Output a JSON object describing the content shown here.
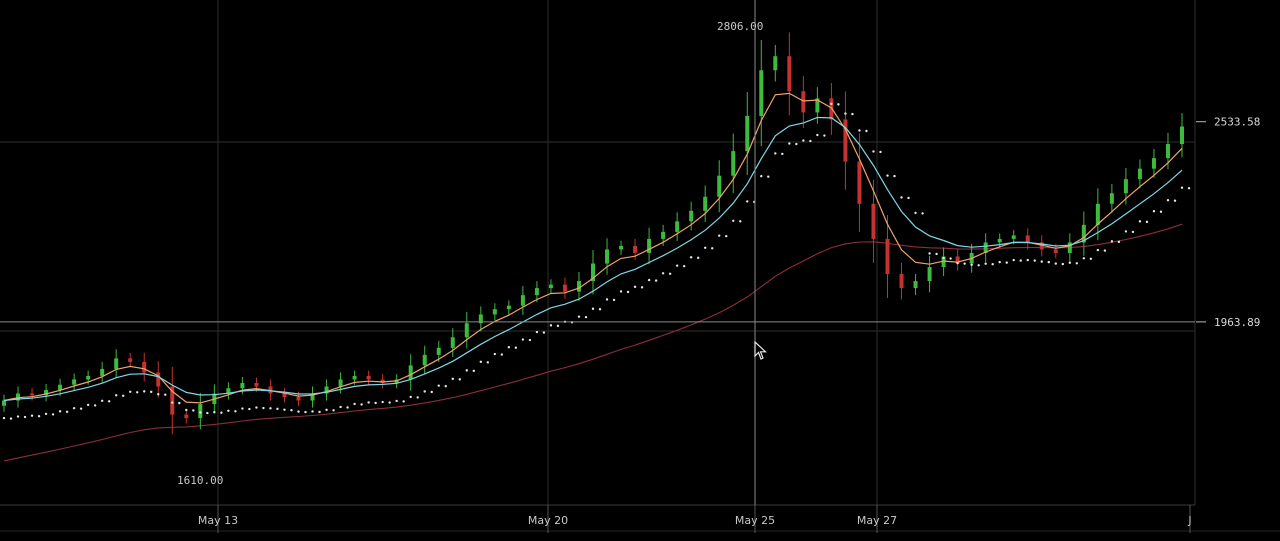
{
  "colors": {
    "background": "#000000",
    "grid": "#2e2e2e",
    "up": "#3dbb3d",
    "down": "#c43232",
    "ema_fast": "#f0a36c",
    "ema_mid": "#7fd8e6",
    "ma_slow": "#8c2e3c",
    "psar": "#e8e8e8",
    "crosshair": "#8a8a8a"
  },
  "chart_data": {
    "type": "candlestick",
    "title": "",
    "xlabel": "",
    "ylabel": "",
    "ylim": [
      1400,
      2830
    ],
    "grid": true,
    "x_tick_labels": [
      "May 13",
      "May 20",
      "May 25",
      "May 27",
      "J"
    ],
    "price_labels": [
      {
        "value": 2533.58,
        "text": "2533.58"
      },
      {
        "value": 1963.89,
        "text": "1963.89"
      }
    ],
    "annotations": [
      {
        "text": "2806.00",
        "value": 2806.0,
        "type": "high"
      },
      {
        "text": "1610.00",
        "value": 1610.0,
        "type": "low"
      }
    ],
    "crosshair": {
      "price": 1963.89,
      "date": "May 25"
    },
    "series": [
      {
        "kind": "price",
        "close": [
          1740,
          1760,
          1755,
          1770,
          1785,
          1800,
          1810,
          1830,
          1860,
          1850,
          1820,
          1780,
          1700,
          1690,
          1730,
          1760,
          1775,
          1790,
          1780,
          1760,
          1750,
          1740,
          1760,
          1780,
          1800,
          1810,
          1800,
          1790,
          1800,
          1840,
          1870,
          1890,
          1920,
          1960,
          1985,
          2000,
          2010,
          2040,
          2060,
          2070,
          2050,
          2080,
          2130,
          2170,
          2180,
          2160,
          2200,
          2220,
          2250,
          2280,
          2320,
          2380,
          2450,
          2550,
          2680,
          2720,
          2620,
          2560,
          2600,
          2540,
          2420,
          2300,
          2200,
          2100,
          2060,
          2080,
          2120,
          2150,
          2130,
          2160,
          2190,
          2200,
          2210,
          2190,
          2170,
          2160,
          2190,
          2240,
          2300,
          2330,
          2370,
          2400,
          2430,
          2470,
          2520
        ]
      }
    ]
  }
}
